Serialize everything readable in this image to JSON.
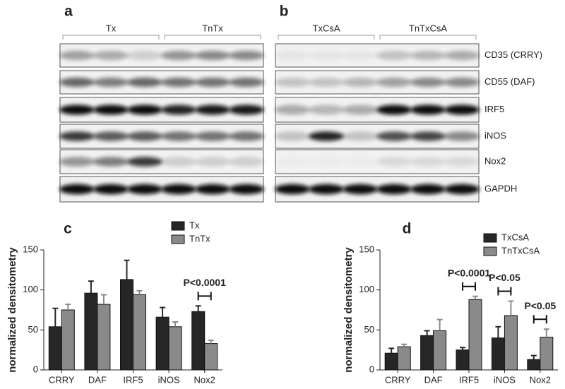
{
  "blots": {
    "panels": [
      {
        "label": "a",
        "groups": [
          "Tx",
          "TnTx"
        ]
      },
      {
        "label": "b",
        "groups": [
          "TxCsA",
          "TnTxCsA"
        ]
      }
    ],
    "rows": [
      "CD35 (CRRY)",
      "CD55 (DAF)",
      "IRF5",
      "iNOS",
      "Nox2",
      "GAPDH"
    ]
  },
  "chart_data": [
    {
      "type": "bar",
      "panel": "c",
      "y_label": "normalized densitometry",
      "categories": [
        "CRRY",
        "DAF",
        "IRF5",
        "iNOS",
        "Nox2"
      ],
      "series": [
        {
          "name": "Tx",
          "color": "#262626",
          "values": [
            54,
            96,
            113,
            66,
            73
          ],
          "errors": [
            23,
            15,
            24,
            12,
            7
          ]
        },
        {
          "name": "TnTx",
          "color": "#8a8a8a",
          "values": [
            75,
            82,
            94,
            54,
            33
          ],
          "errors": [
            7,
            12,
            5,
            6,
            4
          ]
        }
      ],
      "ylim": [
        0,
        150
      ],
      "yticks": [
        0,
        50,
        100,
        150
      ],
      "legend": "upper-right",
      "annotations": [
        {
          "text": "P<0.0001",
          "category": "Nox2"
        }
      ]
    },
    {
      "type": "bar",
      "panel": "d",
      "y_label": "normalized densitometry",
      "categories": [
        "CRRY",
        "DAF",
        "IRF5",
        "iNOS",
        "Nox2"
      ],
      "series": [
        {
          "name": "TxCsA",
          "color": "#262626",
          "values": [
            21,
            43,
            25,
            40,
            13
          ],
          "errors": [
            6,
            6,
            3,
            14,
            5
          ]
        },
        {
          "name": "TnTxCsA",
          "color": "#8a8a8a",
          "values": [
            29,
            49,
            88,
            68,
            41
          ],
          "errors": [
            3,
            14,
            4,
            18,
            10
          ]
        }
      ],
      "ylim": [
        0,
        150
      ],
      "yticks": [
        0,
        50,
        100,
        150
      ],
      "legend": "upper-right",
      "annotations": [
        {
          "text": "P<0.0001",
          "category": "IRF5"
        },
        {
          "text": "P<0.05",
          "category": "iNOS"
        },
        {
          "text": "P<0.05",
          "category": "Nox2"
        }
      ]
    }
  ]
}
